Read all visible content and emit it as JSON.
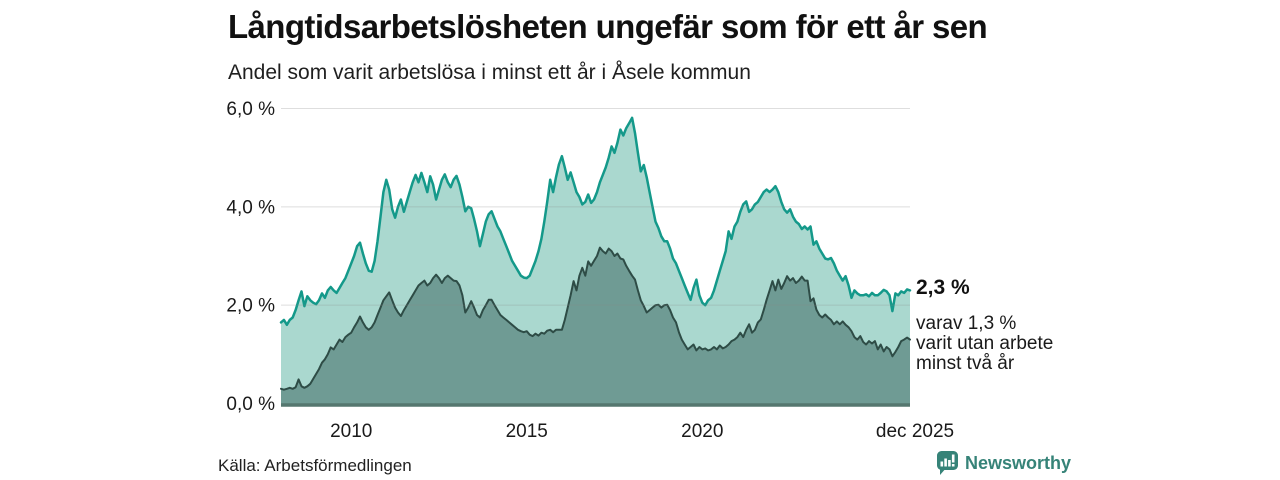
{
  "header": {
    "title": "Långtidsarbetslösheten ungefär som för ett år sen",
    "subtitle": "Andel som varit arbetslösa i minst ett år i Åsele kommun"
  },
  "annotation": {
    "latest_value": "2,3 %",
    "detail_lines": [
      "varav 1,3 %",
      "varit utan arbete",
      "minst två år"
    ]
  },
  "footer": {
    "source": "Källa: Arbetsförmedlingen",
    "brand": "Newsworthy"
  },
  "colors": {
    "light_fill": "#aad8cf",
    "light_stroke": "#14998a",
    "dark_fill": "#6f9b94",
    "dark_stroke": "#2e4c46",
    "grid": "#888888",
    "axis": "#55776f",
    "tick_text": "#1a1a1a",
    "brand_teal": "#368378"
  },
  "chart_data": {
    "type": "area",
    "title": "Långtidsarbetslösheten ungefär som för ett år sen",
    "subtitle": "Andel som varit arbetslösa i minst ett år i Åsele kommun",
    "x_range": [
      2008.0,
      2025.9167
    ],
    "x_step_months": 1,
    "ylim": [
      0,
      6
    ],
    "grid": true,
    "legend": "none (annotated at line end)",
    "yticks": [
      {
        "label": "6,0 %",
        "value": 6
      },
      {
        "label": "4,0 %",
        "value": 4
      },
      {
        "label": "2,0 %",
        "value": 2
      },
      {
        "label": "0,0 %",
        "value": 0
      }
    ],
    "xticks": [
      {
        "label": "2010",
        "value": 2010.0
      },
      {
        "label": "2015",
        "value": 2015.0
      },
      {
        "label": "2020",
        "value": 2020.0
      },
      {
        "label": "dec 2025",
        "value": 2025.9167
      }
    ],
    "series": [
      {
        "id": "unemployed_at_least_one_year",
        "end_value_label": "2,3 %",
        "values": [
          1.65,
          1.7,
          1.6,
          1.7,
          1.75,
          1.9,
          2.1,
          2.28,
          1.98,
          2.18,
          2.1,
          2.05,
          2.02,
          2.1,
          2.24,
          2.15,
          2.3,
          2.37,
          2.3,
          2.25,
          2.35,
          2.45,
          2.55,
          2.7,
          2.85,
          3.0,
          3.2,
          3.27,
          3.05,
          2.85,
          2.7,
          2.68,
          2.9,
          3.3,
          3.8,
          4.3,
          4.55,
          4.35,
          3.95,
          3.78,
          4.0,
          4.15,
          3.9,
          4.1,
          4.3,
          4.5,
          4.65,
          4.5,
          4.69,
          4.5,
          4.3,
          4.62,
          4.45,
          4.15,
          4.35,
          4.55,
          4.66,
          4.5,
          4.4,
          4.55,
          4.63,
          4.45,
          4.2,
          3.91,
          4.0,
          3.97,
          3.75,
          3.5,
          3.2,
          3.45,
          3.7,
          3.85,
          3.91,
          3.75,
          3.6,
          3.5,
          3.35,
          3.2,
          3.05,
          2.9,
          2.8,
          2.7,
          2.6,
          2.56,
          2.55,
          2.6,
          2.75,
          2.9,
          3.1,
          3.35,
          3.7,
          4.1,
          4.55,
          4.3,
          4.6,
          4.86,
          5.03,
          4.8,
          4.55,
          4.7,
          4.5,
          4.3,
          4.2,
          4.05,
          4.1,
          4.25,
          4.08,
          4.15,
          4.3,
          4.5,
          4.65,
          4.8,
          5.0,
          5.23,
          5.1,
          5.3,
          5.57,
          5.45,
          5.6,
          5.7,
          5.81,
          5.5,
          5.1,
          4.72,
          4.85,
          4.6,
          4.3,
          4.0,
          3.7,
          3.57,
          3.4,
          3.3,
          3.3,
          3.15,
          2.95,
          2.85,
          2.7,
          2.55,
          2.4,
          2.25,
          2.11,
          2.35,
          2.52,
          2.2,
          2.05,
          2.0,
          2.1,
          2.15,
          2.3,
          2.5,
          2.7,
          2.9,
          3.1,
          3.5,
          3.35,
          3.6,
          3.7,
          3.9,
          4.05,
          4.11,
          3.9,
          3.95,
          4.05,
          4.1,
          4.2,
          4.3,
          4.35,
          4.3,
          4.35,
          4.42,
          4.3,
          4.1,
          3.95,
          3.88,
          3.95,
          3.8,
          3.7,
          3.65,
          3.55,
          3.6,
          3.54,
          3.6,
          3.23,
          3.3,
          3.15,
          3.05,
          2.95,
          2.93,
          2.96,
          2.85,
          2.7,
          2.6,
          2.5,
          2.59,
          2.4,
          2.15,
          2.3,
          2.24,
          2.2,
          2.2,
          2.22,
          2.18,
          2.25,
          2.2,
          2.2,
          2.25,
          2.31,
          2.28,
          2.2,
          1.88,
          2.24,
          2.2,
          2.28,
          2.25,
          2.32,
          2.3
        ]
      },
      {
        "id": "unemployed_at_least_two_years",
        "end_value_label": "1,3 %",
        "values": [
          0.3,
          0.28,
          0.3,
          0.32,
          0.3,
          0.33,
          0.49,
          0.35,
          0.32,
          0.35,
          0.4,
          0.5,
          0.6,
          0.7,
          0.83,
          0.9,
          1.0,
          1.14,
          1.1,
          1.2,
          1.3,
          1.25,
          1.35,
          1.4,
          1.44,
          1.55,
          1.65,
          1.77,
          1.65,
          1.55,
          1.5,
          1.55,
          1.65,
          1.8,
          1.95,
          2.1,
          2.18,
          2.26,
          2.1,
          1.95,
          1.85,
          1.78,
          1.9,
          2.0,
          2.1,
          2.2,
          2.3,
          2.4,
          2.45,
          2.5,
          2.4,
          2.45,
          2.55,
          2.62,
          2.55,
          2.45,
          2.55,
          2.6,
          2.55,
          2.5,
          2.49,
          2.4,
          2.2,
          1.85,
          1.95,
          2.08,
          1.95,
          1.8,
          1.75,
          1.9,
          2.0,
          2.11,
          2.11,
          2.0,
          1.9,
          1.8,
          1.75,
          1.7,
          1.65,
          1.6,
          1.55,
          1.5,
          1.47,
          1.45,
          1.47,
          1.4,
          1.37,
          1.42,
          1.38,
          1.44,
          1.42,
          1.48,
          1.5,
          1.45,
          1.5,
          1.5,
          1.5,
          1.7,
          1.95,
          2.2,
          2.49,
          2.3,
          2.6,
          2.76,
          2.6,
          2.89,
          2.8,
          2.9,
          3.0,
          3.17,
          3.1,
          3.05,
          3.15,
          3.1,
          3.0,
          3.05,
          2.95,
          2.93,
          2.8,
          2.7,
          2.6,
          2.52,
          2.3,
          2.1,
          1.98,
          1.85,
          1.9,
          1.95,
          2.0,
          2.01,
          1.95,
          2.0,
          2.01,
          1.9,
          1.75,
          1.65,
          1.45,
          1.3,
          1.2,
          1.1,
          1.15,
          1.2,
          1.08,
          1.15,
          1.1,
          1.12,
          1.08,
          1.1,
          1.15,
          1.1,
          1.18,
          1.12,
          1.15,
          1.2,
          1.27,
          1.3,
          1.35,
          1.44,
          1.35,
          1.5,
          1.61,
          1.44,
          1.5,
          1.65,
          1.71,
          1.9,
          2.11,
          2.3,
          2.49,
          2.3,
          2.52,
          2.33,
          2.45,
          2.59,
          2.5,
          2.55,
          2.45,
          2.5,
          2.58,
          2.5,
          2.5,
          2.08,
          2.14,
          1.91,
          1.8,
          1.75,
          1.81,
          1.75,
          1.7,
          1.61,
          1.67,
          1.61,
          1.67,
          1.6,
          1.55,
          1.47,
          1.35,
          1.3,
          1.37,
          1.25,
          1.2,
          1.27,
          1.22,
          1.27,
          1.1,
          1.2,
          1.06,
          1.15,
          1.1,
          0.96,
          1.05,
          1.15,
          1.27,
          1.3,
          1.34,
          1.3
        ]
      }
    ]
  }
}
